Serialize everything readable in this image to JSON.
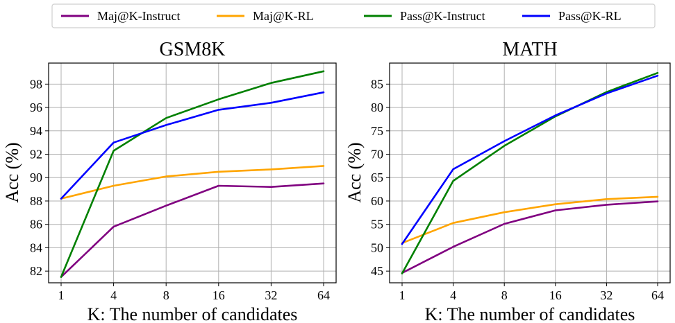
{
  "legend": {
    "items": [
      {
        "label": "Maj@K-Instruct",
        "color": "#800080"
      },
      {
        "label": "Maj@K-RL",
        "color": "#FFA500"
      },
      {
        "label": "Pass@K-Instruct",
        "color": "#008000"
      },
      {
        "label": "Pass@K-RL",
        "color": "#0000FF"
      }
    ],
    "placement": "top-center"
  },
  "chart_data": [
    {
      "type": "line",
      "title": "GSM8K",
      "xlabel": "K: The number of candidates",
      "ylabel": "Acc (%)",
      "categories": [
        "1",
        "4",
        "8",
        "16",
        "32",
        "64"
      ],
      "ylim": [
        81,
        99.8
      ],
      "yticks": [
        82,
        84,
        86,
        88,
        90,
        92,
        94,
        96,
        98
      ],
      "grid": true,
      "series": [
        {
          "name": "Maj@K-Instruct",
          "color": "#800080",
          "values": [
            81.5,
            85.8,
            87.6,
            89.3,
            89.2,
            89.5
          ]
        },
        {
          "name": "Maj@K-RL",
          "color": "#FFA500",
          "values": [
            88.2,
            89.3,
            90.1,
            90.5,
            90.7,
            91.0
          ]
        },
        {
          "name": "Pass@K-Instruct",
          "color": "#008000",
          "values": [
            81.5,
            92.3,
            95.1,
            96.7,
            98.1,
            99.1
          ]
        },
        {
          "name": "Pass@K-RL",
          "color": "#0000FF",
          "values": [
            88.2,
            93.0,
            94.5,
            95.8,
            96.4,
            97.3
          ]
        }
      ]
    },
    {
      "type": "line",
      "title": "MATH",
      "xlabel": "K: The number of candidates",
      "ylabel": "Acc (%)",
      "categories": [
        "1",
        "4",
        "8",
        "16",
        "32",
        "64"
      ],
      "ylim": [
        42.5,
        89.5
      ],
      "yticks": [
        45,
        50,
        55,
        60,
        65,
        70,
        75,
        80,
        85
      ],
      "grid": true,
      "series": [
        {
          "name": "Maj@K-Instruct",
          "color": "#800080",
          "values": [
            44.6,
            50.2,
            55.1,
            58.0,
            59.2,
            59.9
          ]
        },
        {
          "name": "Maj@K-RL",
          "color": "#FFA500",
          "values": [
            51.0,
            55.3,
            57.6,
            59.3,
            60.4,
            60.9
          ]
        },
        {
          "name": "Pass@K-Instruct",
          "color": "#008000",
          "values": [
            44.5,
            64.3,
            71.8,
            78.1,
            83.3,
            87.4
          ]
        },
        {
          "name": "Pass@K-RL",
          "color": "#0000FF",
          "values": [
            50.8,
            66.8,
            72.8,
            78.3,
            83.0,
            86.8
          ]
        }
      ]
    }
  ]
}
